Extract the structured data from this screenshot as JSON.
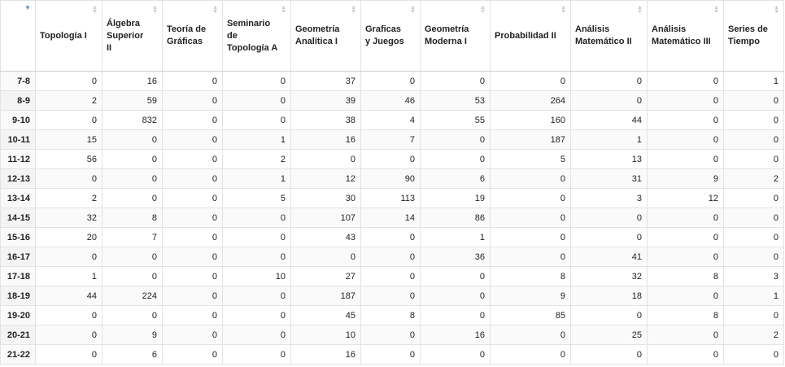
{
  "table": {
    "columns": [
      {
        "label": "Topología I"
      },
      {
        "label": "Álgebra Superior II"
      },
      {
        "label": "Teoría de Gráficas"
      },
      {
        "label": "Seminario de Topología A"
      },
      {
        "label": "Geometría Analítica I"
      },
      {
        "label": "Graficas y Juegos"
      },
      {
        "label": "Geometría Moderna I"
      },
      {
        "label": "Probabilidad II"
      },
      {
        "label": "Análisis Matemático II"
      },
      {
        "label": "Análisis Matemático III"
      },
      {
        "label": "Series de Tiempo"
      }
    ],
    "rows": [
      {
        "label": "7-8",
        "values": [
          0,
          16,
          0,
          0,
          37,
          0,
          0,
          0,
          0,
          0,
          1
        ]
      },
      {
        "label": "8-9",
        "values": [
          2,
          59,
          0,
          0,
          39,
          46,
          53,
          264,
          0,
          0,
          0
        ]
      },
      {
        "label": "9-10",
        "values": [
          0,
          832,
          0,
          0,
          38,
          4,
          55,
          160,
          44,
          0,
          0
        ]
      },
      {
        "label": "10-11",
        "values": [
          15,
          0,
          0,
          1,
          16,
          7,
          0,
          187,
          1,
          0,
          0
        ]
      },
      {
        "label": "11-12",
        "values": [
          56,
          0,
          0,
          2,
          0,
          0,
          0,
          5,
          13,
          0,
          0
        ]
      },
      {
        "label": "12-13",
        "values": [
          0,
          0,
          0,
          1,
          12,
          90,
          6,
          0,
          31,
          9,
          2
        ]
      },
      {
        "label": "13-14",
        "values": [
          2,
          0,
          0,
          5,
          30,
          113,
          19,
          0,
          3,
          12,
          0
        ]
      },
      {
        "label": "14-15",
        "values": [
          32,
          8,
          0,
          0,
          107,
          14,
          86,
          0,
          0,
          0,
          0
        ]
      },
      {
        "label": "15-16",
        "values": [
          20,
          7,
          0,
          0,
          43,
          0,
          1,
          0,
          0,
          0,
          0
        ]
      },
      {
        "label": "16-17",
        "values": [
          0,
          0,
          0,
          0,
          0,
          0,
          36,
          0,
          41,
          0,
          0
        ]
      },
      {
        "label": "17-18",
        "values": [
          1,
          0,
          0,
          10,
          27,
          0,
          0,
          8,
          32,
          8,
          3
        ]
      },
      {
        "label": "18-19",
        "values": [
          44,
          224,
          0,
          0,
          187,
          0,
          0,
          9,
          18,
          0,
          1
        ]
      },
      {
        "label": "19-20",
        "values": [
          0,
          0,
          0,
          0,
          45,
          8,
          0,
          85,
          0,
          8,
          0
        ]
      },
      {
        "label": "20-21",
        "values": [
          0,
          9,
          0,
          0,
          10,
          0,
          16,
          0,
          25,
          0,
          2
        ]
      },
      {
        "label": "21-22",
        "values": [
          0,
          6,
          0,
          0,
          16,
          0,
          0,
          0,
          0,
          0,
          0
        ]
      }
    ]
  }
}
